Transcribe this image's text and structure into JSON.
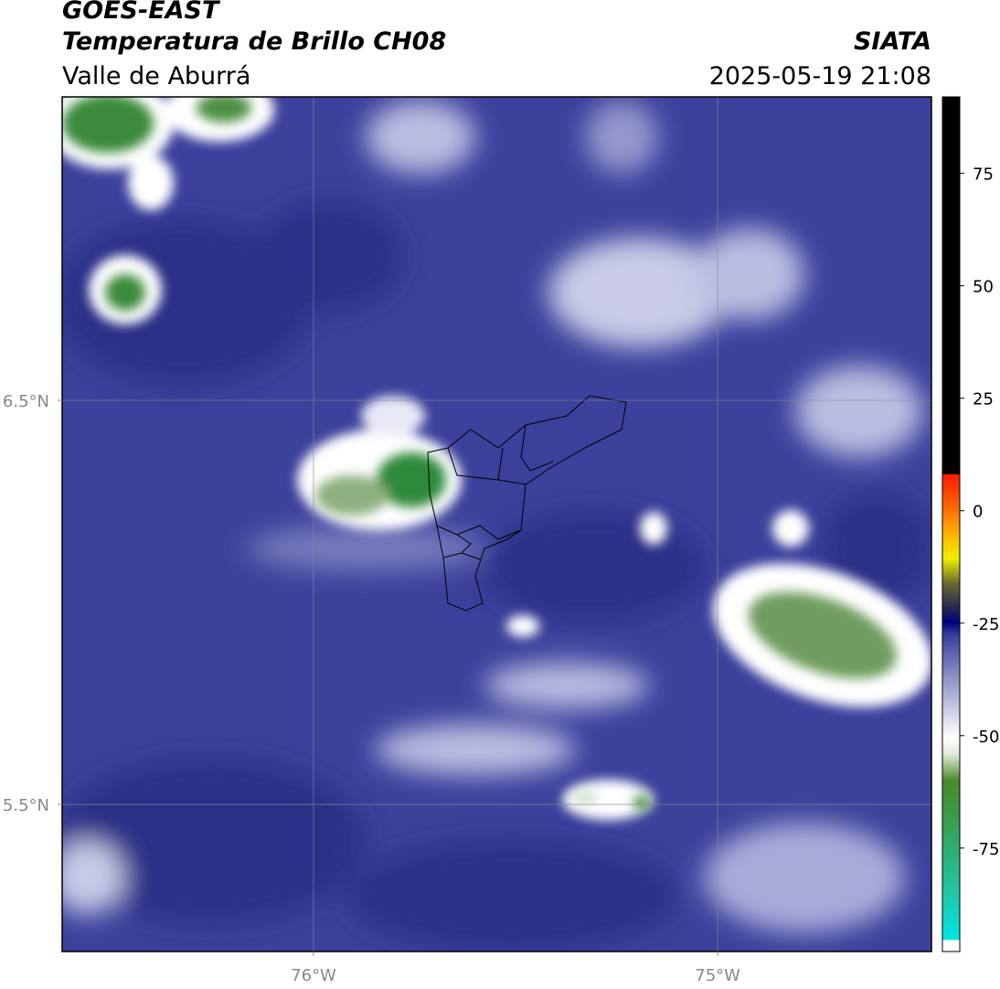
{
  "header": {
    "title": "GOES-EAST",
    "subtitle": "Temperatura de Brillo CH08",
    "region": "Valle de Aburrá",
    "source": "SIATA",
    "datetime": "2025-05-19 21:08"
  },
  "map": {
    "xlim": [
      -76.622,
      -74.471
    ],
    "ylim": [
      5.136,
      7.251
    ],
    "xticks": [
      {
        "value": -76,
        "label": "76°W"
      },
      {
        "value": -75,
        "label": "75°W"
      }
    ],
    "yticks": [
      {
        "value": 6.5,
        "label": "6.5°N"
      },
      {
        "value": 5.5,
        "label": "5.5°N"
      }
    ],
    "grid": true
  },
  "colorbar": {
    "lim": [
      -98,
      92
    ],
    "ticks": [
      75,
      50,
      25,
      0,
      -25,
      -50,
      -75
    ]
  }
}
